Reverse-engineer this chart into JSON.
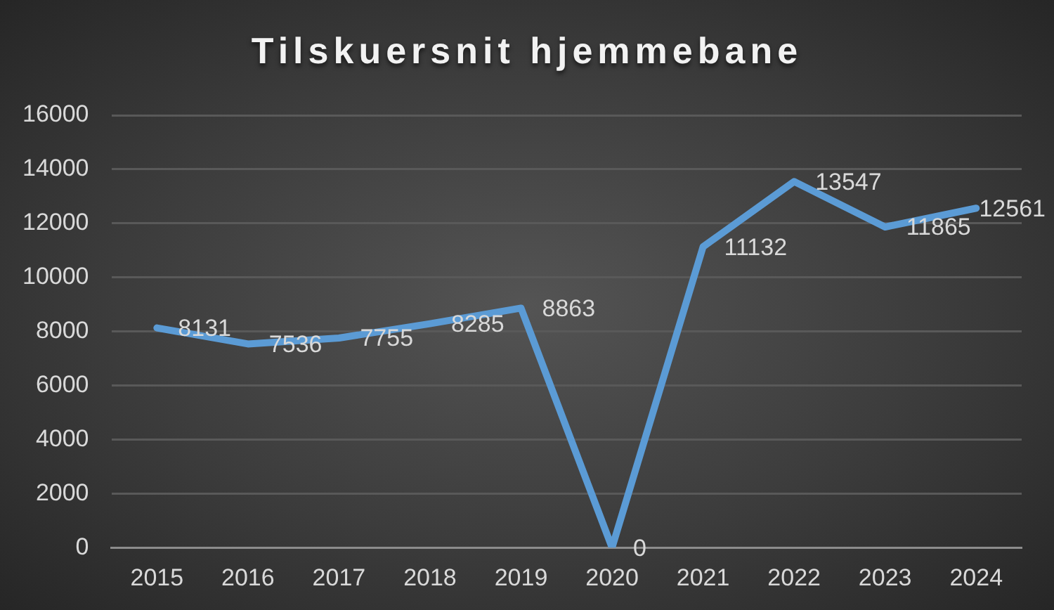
{
  "chart_data": {
    "type": "line",
    "title": "Tilskuersnit hjemmebane",
    "categories": [
      "2015",
      "2016",
      "2017",
      "2018",
      "2019",
      "2020",
      "2021",
      "2022",
      "2023",
      "2024"
    ],
    "values": [
      8131,
      7536,
      7755,
      8285,
      8863,
      0,
      11132,
      13547,
      11865,
      12561
    ],
    "color": "#5b9bd5",
    "ylim": [
      0,
      16000
    ],
    "yticks": [
      0,
      2000,
      4000,
      6000,
      8000,
      10000,
      12000,
      14000,
      16000
    ],
    "grid": "y",
    "marker": "none",
    "line_style": "solid",
    "data_labels": true
  }
}
